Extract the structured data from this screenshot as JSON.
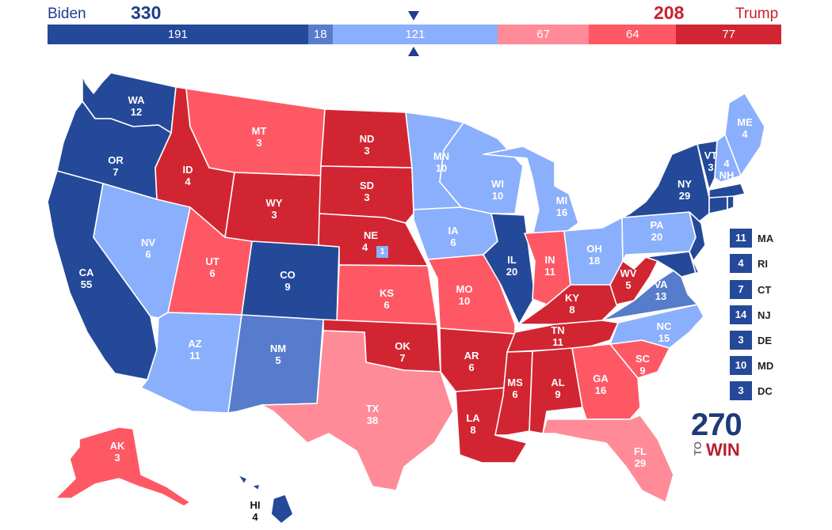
{
  "header": {
    "dem_name": "Biden",
    "dem_total": "330",
    "rep_name": "Trump",
    "rep_total": "208"
  },
  "colors": {
    "safe_d": "#244999",
    "likely_d": "#577ccc",
    "lean_d": "#8aaffc",
    "lean_r": "#ff8b98",
    "likely_r": "#ff5865",
    "safe_r": "#d22532",
    "accent_dem": "#1f3f8b",
    "accent_rep": "#c8202f"
  },
  "bar": [
    {
      "value": "191",
      "category": "safe_d",
      "share": 191
    },
    {
      "value": "18",
      "category": "likely_d",
      "share": 18
    },
    {
      "value": "121",
      "category": "lean_d",
      "share": 121
    },
    {
      "value": "67",
      "category": "lean_r",
      "share": 67
    },
    {
      "value": "64",
      "category": "likely_r",
      "share": 64
    },
    {
      "value": "77",
      "category": "safe_r",
      "share": 77
    }
  ],
  "states": {
    "WA": {
      "abbr": "WA",
      "ev": "12",
      "category": "safe_d"
    },
    "OR": {
      "abbr": "OR",
      "ev": "7",
      "category": "safe_d"
    },
    "CA": {
      "abbr": "CA",
      "ev": "55",
      "category": "safe_d"
    },
    "ID": {
      "abbr": "ID",
      "ev": "4",
      "category": "safe_r"
    },
    "NV": {
      "abbr": "NV",
      "ev": "6",
      "category": "lean_d"
    },
    "MT": {
      "abbr": "MT",
      "ev": "3",
      "category": "likely_r"
    },
    "WY": {
      "abbr": "WY",
      "ev": "3",
      "category": "safe_r"
    },
    "UT": {
      "abbr": "UT",
      "ev": "6",
      "category": "likely_r"
    },
    "AZ": {
      "abbr": "AZ",
      "ev": "11",
      "category": "lean_d"
    },
    "CO": {
      "abbr": "CO",
      "ev": "9",
      "category": "safe_d"
    },
    "NM": {
      "abbr": "NM",
      "ev": "5",
      "category": "likely_d"
    },
    "ND": {
      "abbr": "ND",
      "ev": "3",
      "category": "safe_r"
    },
    "SD": {
      "abbr": "SD",
      "ev": "3",
      "category": "safe_r"
    },
    "NE": {
      "abbr": "NE",
      "ev": "4",
      "category": "safe_r"
    },
    "KS": {
      "abbr": "KS",
      "ev": "6",
      "category": "likely_r"
    },
    "OK": {
      "abbr": "OK",
      "ev": "7",
      "category": "safe_r"
    },
    "TX": {
      "abbr": "TX",
      "ev": "38",
      "category": "lean_r"
    },
    "MN": {
      "abbr": "MN",
      "ev": "10",
      "category": "lean_d"
    },
    "IA": {
      "abbr": "IA",
      "ev": "6",
      "category": "lean_d"
    },
    "MO": {
      "abbr": "MO",
      "ev": "10",
      "category": "likely_r"
    },
    "AR": {
      "abbr": "AR",
      "ev": "6",
      "category": "safe_r"
    },
    "LA": {
      "abbr": "LA",
      "ev": "8",
      "category": "safe_r"
    },
    "WI": {
      "abbr": "WI",
      "ev": "10",
      "category": "lean_d"
    },
    "IL": {
      "abbr": "IL",
      "ev": "20",
      "category": "safe_d"
    },
    "MI": {
      "abbr": "MI",
      "ev": "16",
      "category": "lean_d"
    },
    "IN": {
      "abbr": "IN",
      "ev": "11",
      "category": "likely_r"
    },
    "OH": {
      "abbr": "OH",
      "ev": "18",
      "category": "lean_d"
    },
    "KY": {
      "abbr": "KY",
      "ev": "8",
      "category": "safe_r"
    },
    "TN": {
      "abbr": "TN",
      "ev": "11",
      "category": "safe_r"
    },
    "MS": {
      "abbr": "MS",
      "ev": "6",
      "category": "safe_r"
    },
    "AL": {
      "abbr": "AL",
      "ev": "9",
      "category": "safe_r"
    },
    "GA": {
      "abbr": "GA",
      "ev": "16",
      "category": "likely_r"
    },
    "FL": {
      "abbr": "FL",
      "ev": "29",
      "category": "lean_r"
    },
    "SC": {
      "abbr": "SC",
      "ev": "9",
      "category": "likely_r"
    },
    "NC": {
      "abbr": "NC",
      "ev": "15",
      "category": "lean_d"
    },
    "VA": {
      "abbr": "VA",
      "ev": "13",
      "category": "likely_d"
    },
    "WV": {
      "abbr": "WV",
      "ev": "5",
      "category": "safe_r"
    },
    "PA": {
      "abbr": "PA",
      "ev": "20",
      "category": "lean_d"
    },
    "NY": {
      "abbr": "NY",
      "ev": "29",
      "category": "safe_d"
    },
    "VT": {
      "abbr": "VT",
      "ev": "3",
      "category": "safe_d"
    },
    "NH": {
      "abbr": "NH",
      "ev": "4",
      "category": "lean_d"
    },
    "ME": {
      "abbr": "ME",
      "ev": "4",
      "category": "lean_d"
    },
    "AK": {
      "abbr": "AK",
      "ev": "3",
      "category": "likely_r"
    },
    "HI": {
      "abbr": "HI",
      "ev": "4",
      "category": "safe_d"
    }
  },
  "ne_district": {
    "ev": "1",
    "category": "lean_d"
  },
  "small_states": [
    {
      "abbr": "MA",
      "ev": "11",
      "category": "safe_d"
    },
    {
      "abbr": "RI",
      "ev": "4",
      "category": "safe_d"
    },
    {
      "abbr": "CT",
      "ev": "7",
      "category": "safe_d"
    },
    {
      "abbr": "NJ",
      "ev": "14",
      "category": "safe_d"
    },
    {
      "abbr": "DE",
      "ev": "3",
      "category": "safe_d"
    },
    {
      "abbr": "MD",
      "ev": "10",
      "category": "safe_d"
    },
    {
      "abbr": "DC",
      "ev": "3",
      "category": "safe_d"
    }
  ],
  "logo": {
    "number": "270",
    "to": "TO",
    "win": "WIN"
  }
}
